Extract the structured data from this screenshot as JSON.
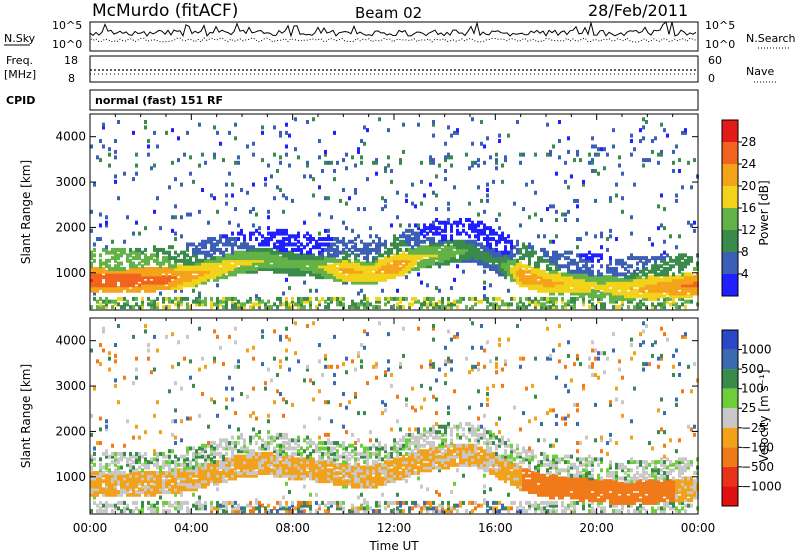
{
  "header": {
    "station": "McMurdo (fitACF)",
    "beam": "Beam 02",
    "date": "28/Feb/2011"
  },
  "panels": {
    "nsky_label": "N.Sky",
    "nsky_ticks": [
      "10^5",
      "10^0"
    ],
    "nsearch_label": "N.Search",
    "nsearch_ticks": [
      "10^5",
      "10^0"
    ],
    "freq_label_1": "Freq.",
    "freq_label_2": "[MHz]",
    "freq_ticks": [
      "18",
      "8"
    ],
    "nave_label": "Nave",
    "nave_ticks": [
      "60",
      "0"
    ],
    "cpid_label": "CPID",
    "cpid_text": "normal (fast) 151 RF"
  },
  "chart_data": [
    {
      "type": "heatmap",
      "title": "",
      "xlabel": "Time UT",
      "ylabel": "Slant Range [km]",
      "xlim": [
        0,
        24
      ],
      "ylim": [
        180,
        4500
      ],
      "x_ticks": [
        "00:00",
        "04:00",
        "08:00",
        "12:00",
        "16:00",
        "20:00",
        "00:00"
      ],
      "y_ticks": [
        1000,
        2000,
        3000,
        4000
      ],
      "colorbar": {
        "label": "Power [dB]",
        "ticks": [
          "4",
          "8",
          "12",
          "16",
          "20",
          "24",
          "28"
        ],
        "colors": [
          "#1f1fff",
          "#3c5fb6",
          "#3a8a4c",
          "#62b248",
          "#f2d21a",
          "#f5a31a",
          "#f0641e",
          "#e21a1a"
        ]
      },
      "bands": [
        {
          "name": "main-echo",
          "t": [
            0,
            1,
            2,
            3,
            4,
            5,
            6,
            7,
            8,
            9,
            10,
            11,
            12,
            13,
            14,
            15,
            16,
            17,
            18,
            19,
            20,
            21,
            22,
            23,
            24
          ],
          "range_km": [
            800,
            780,
            800,
            820,
            900,
            1050,
            1200,
            1250,
            1150,
            1100,
            1000,
            950,
            1100,
            1300,
            1400,
            1450,
            1200,
            900,
            750,
            700,
            650,
            600,
            620,
            650,
            700
          ],
          "power_db": [
            28,
            28,
            27,
            26,
            22,
            20,
            18,
            16,
            14,
            16,
            22,
            20,
            24,
            18,
            16,
            12,
            10,
            24,
            22,
            20,
            18,
            20,
            22,
            24,
            26
          ]
        }
      ]
    },
    {
      "type": "heatmap",
      "title": "",
      "xlabel": "Time UT",
      "ylabel": "Slant Range [km]",
      "xlim": [
        0,
        24
      ],
      "ylim": [
        180,
        4500
      ],
      "x_ticks": [
        "00:00",
        "04:00",
        "08:00",
        "12:00",
        "16:00",
        "20:00",
        "00:00"
      ],
      "y_ticks": [
        1000,
        2000,
        3000,
        4000
      ],
      "colorbar": {
        "label": "Velocity [m s⁻¹]",
        "ticks": [
          "1000",
          "500",
          "100",
          "25",
          "−25",
          "−100",
          "−500",
          "−1000"
        ],
        "colors": [
          "#2a47c8",
          "#3a6bb0",
          "#3a8a4c",
          "#6ccf3a",
          "#c8c8c8",
          "#f2a21a",
          "#f07a1a",
          "#e8321a",
          "#e01010"
        ]
      }
    }
  ]
}
